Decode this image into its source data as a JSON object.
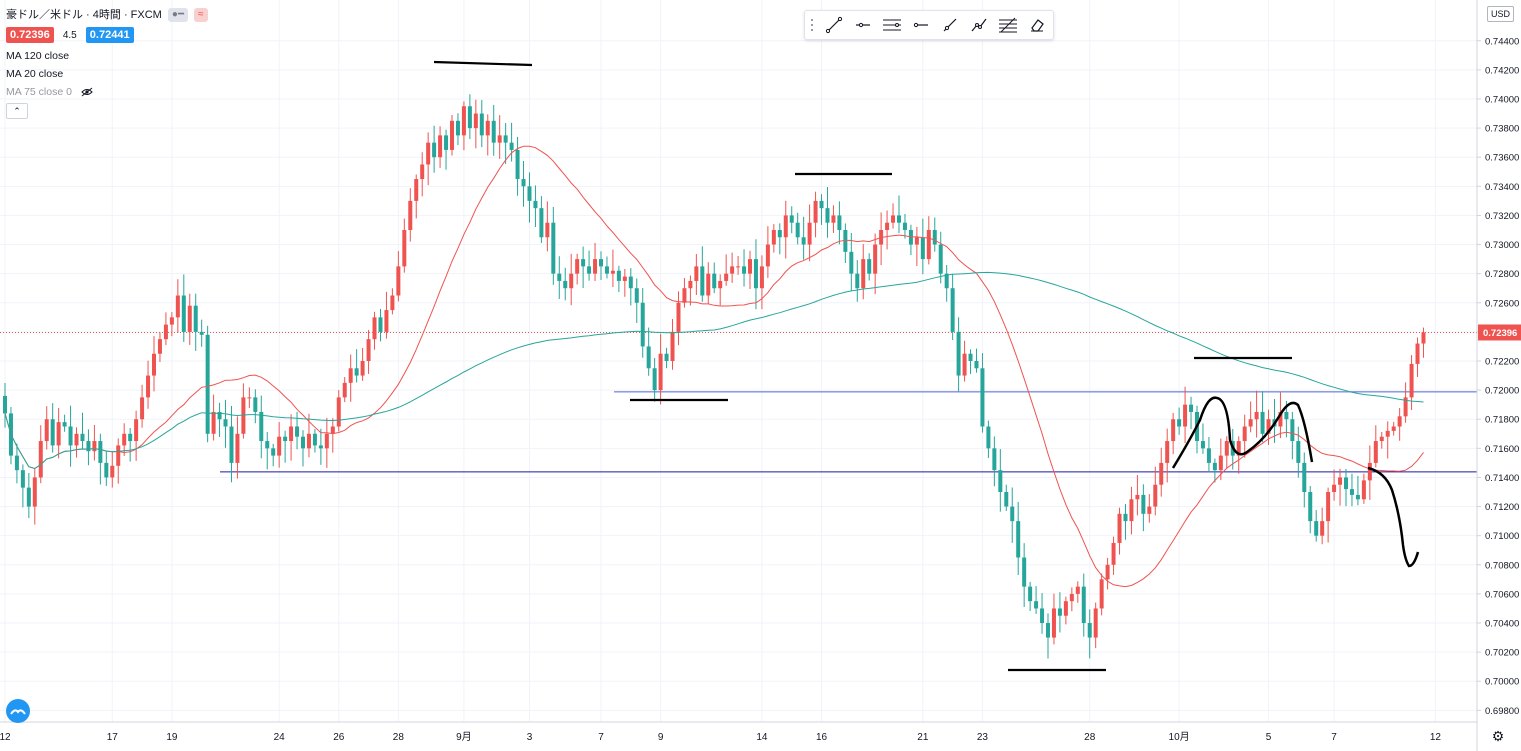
{
  "symbol": {
    "title": "豪ドル／米ドル · 4時間 · FXCM",
    "bid": "0.72396",
    "spread": "4.5",
    "ask": "0.72441"
  },
  "indicators": [
    {
      "label": "MA 120 close"
    },
    {
      "label": "MA 20 close"
    },
    {
      "label": "MA 75 close 0"
    }
  ],
  "currency_label": "USD",
  "colors": {
    "up": "#ef5350",
    "down": "#26a69a",
    "ma20": "#ef5350",
    "ma120": "#26a69a",
    "support": "#1a1aa8",
    "resistance": "#7b8fe0",
    "drawing": "#000000",
    "grid": "#f0f3fa"
  },
  "toolbar": {
    "tools": [
      "trend-line-icon",
      "horizontal-ray-icon",
      "parallel-channel-icon",
      "horizontal-line-icon",
      "ray-icon",
      "path-icon",
      "fib-icon",
      "eraser-icon"
    ]
  },
  "chart_data": {
    "type": "candlestick",
    "ylim": [
      0.6972,
      0.7468
    ],
    "y_ticks": [
      "0.74400",
      "0.74200",
      "0.74000",
      "0.73800",
      "0.73600",
      "0.73400",
      "0.73200",
      "0.73000",
      "0.72800",
      "0.72600",
      "0.72400",
      "0.72200",
      "0.72000",
      "0.71800",
      "0.71600",
      "0.71400",
      "0.71200",
      "0.71000",
      "0.70800",
      "0.70600",
      "0.70400",
      "0.70200",
      "0.70000",
      "0.69800"
    ],
    "x_ticks": [
      {
        "label": "12",
        "i": 0
      },
      {
        "label": "17",
        "i": 18
      },
      {
        "label": "19",
        "i": 28
      },
      {
        "label": "24",
        "i": 46
      },
      {
        "label": "26",
        "i": 56
      },
      {
        "label": "28",
        "i": 66
      },
      {
        "label": "9月",
        "i": 77
      },
      {
        "label": "3",
        "i": 88
      },
      {
        "label": "7",
        "i": 100
      },
      {
        "label": "9",
        "i": 110
      },
      {
        "label": "14",
        "i": 127
      },
      {
        "label": "16",
        "i": 137
      },
      {
        "label": "21",
        "i": 154
      },
      {
        "label": "23",
        "i": 164
      },
      {
        "label": "28",
        "i": 182
      },
      {
        "label": "10月",
        "i": 197
      },
      {
        "label": "5",
        "i": 212
      },
      {
        "label": "7",
        "i": 223
      },
      {
        "label": "12",
        "i": 240
      }
    ],
    "last_price": "0.72396",
    "last_price_value": 0.72396,
    "support_level": 0.71438,
    "resistance_level": 0.71988,
    "close": [
      0.7184,
      0.7155,
      0.7145,
      0.7133,
      0.712,
      0.714,
      0.7165,
      0.718,
      0.7162,
      0.7178,
      0.7175,
      0.7162,
      0.717,
      0.7165,
      0.7158,
      0.7165,
      0.715,
      0.714,
      0.7148,
      0.7162,
      0.717,
      0.7165,
      0.718,
      0.7195,
      0.721,
      0.7225,
      0.7235,
      0.7245,
      0.725,
      0.7265,
      0.724,
      0.7258,
      0.724,
      0.7238,
      0.717,
      0.7185,
      0.718,
      0.7175,
      0.715,
      0.717,
      0.7195,
      0.7195,
      0.7185,
      0.7165,
      0.716,
      0.7155,
      0.7168,
      0.7165,
      0.7175,
      0.7168,
      0.716,
      0.717,
      0.7162,
      0.716,
      0.717,
      0.7175,
      0.7195,
      0.7205,
      0.7215,
      0.721,
      0.722,
      0.7235,
      0.725,
      0.724,
      0.7255,
      0.7265,
      0.7285,
      0.731,
      0.733,
      0.7345,
      0.7355,
      0.737,
      0.736,
      0.7375,
      0.7365,
      0.7385,
      0.7375,
      0.7395,
      0.738,
      0.739,
      0.7375,
      0.7385,
      0.737,
      0.7375,
      0.737,
      0.7365,
      0.7345,
      0.734,
      0.733,
      0.7325,
      0.7305,
      0.7315,
      0.728,
      0.7275,
      0.727,
      0.728,
      0.729,
      0.7285,
      0.728,
      0.729,
      0.7285,
      0.728,
      0.7282,
      0.7275,
      0.7278,
      0.727,
      0.726,
      0.723,
      0.7215,
      0.72,
      0.7225,
      0.722,
      0.724,
      0.726,
      0.727,
      0.7275,
      0.7285,
      0.7265,
      0.728,
      0.727,
      0.7275,
      0.728,
      0.7285,
      0.7285,
      0.728,
      0.729,
      0.727,
      0.7285,
      0.73,
      0.731,
      0.7305,
      0.732,
      0.7315,
      0.7305,
      0.73,
      0.7315,
      0.733,
      0.7325,
      0.7315,
      0.732,
      0.731,
      0.7295,
      0.728,
      0.727,
      0.729,
      0.728,
      0.73,
      0.731,
      0.7315,
      0.732,
      0.7315,
      0.731,
      0.73,
      0.7305,
      0.729,
      0.731,
      0.73,
      0.728,
      0.727,
      0.724,
      0.721,
      0.7225,
      0.722,
      0.7215,
      0.7175,
      0.716,
      0.7145,
      0.713,
      0.712,
      0.711,
      0.7085,
      0.7065,
      0.7055,
      0.705,
      0.704,
      0.703,
      0.705,
      0.7045,
      0.7055,
      0.706,
      0.7065,
      0.704,
      0.703,
      0.705,
      0.707,
      0.708,
      0.7095,
      0.7115,
      0.711,
      0.7125,
      0.7128,
      0.7115,
      0.712,
      0.7135,
      0.715,
      0.7165,
      0.718,
      0.7175,
      0.719,
      0.7185,
      0.7165,
      0.716,
      0.715,
      0.7145,
      0.7155,
      0.7165,
      0.7155,
      0.7165,
      0.7175,
      0.718,
      0.7185,
      0.717,
      0.718,
      0.7175,
      0.7185,
      0.718,
      0.7165,
      0.715,
      0.713,
      0.711,
      0.71,
      0.711,
      0.713,
      0.7135,
      0.714,
      0.7132,
      0.7128,
      0.7125,
      0.7138,
      0.715,
      0.7165,
      0.7168,
      0.7172,
      0.7175,
      0.7182,
      0.7195,
      0.7218,
      0.7232,
      0.72396
    ]
  }
}
